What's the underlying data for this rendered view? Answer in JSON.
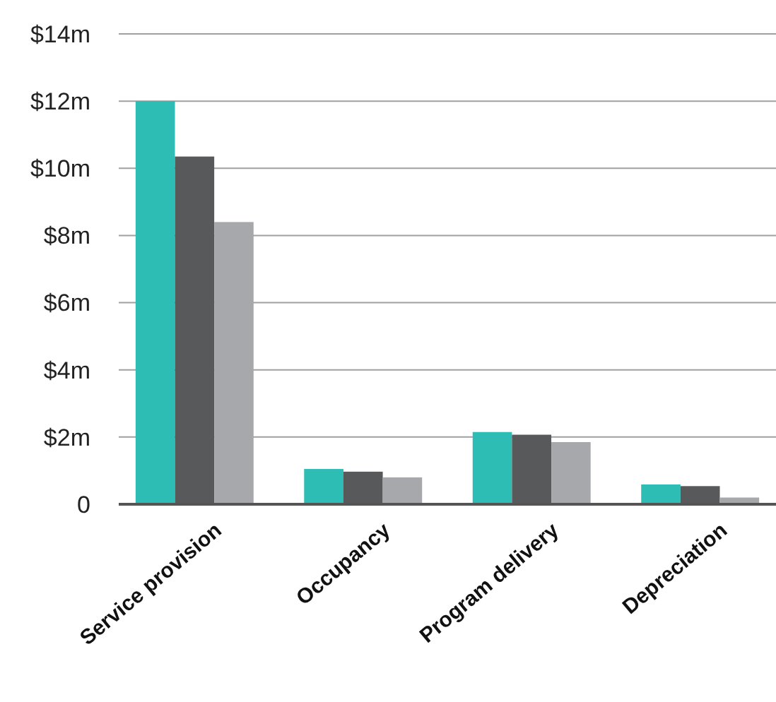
{
  "chart_data": {
    "type": "bar",
    "categories": [
      "Service provision",
      "Occupancy",
      "Program delivery",
      "Depreciation"
    ],
    "series": [
      {
        "color": "#2ebdb5",
        "values": [
          12,
          1.05,
          2.15,
          0.59
        ]
      },
      {
        "color": "#58595b",
        "values": [
          10.35,
          0.97,
          2.07,
          0.54
        ]
      },
      {
        "color": "#a7a8ab",
        "values": [
          8.4,
          0.8,
          1.85,
          0.2
        ]
      }
    ],
    "ylim": [
      0,
      14
    ],
    "yticks": [
      {
        "value": 0,
        "label": "0"
      },
      {
        "value": 2,
        "label": "$2m"
      },
      {
        "value": 4,
        "label": "$4m"
      },
      {
        "value": 6,
        "label": "$6m"
      },
      {
        "value": 8,
        "label": "$8m"
      },
      {
        "value": 10,
        "label": "$10m"
      },
      {
        "value": 12,
        "label": "$12m"
      },
      {
        "value": 14,
        "label": "$14m"
      }
    ],
    "grid": "y"
  }
}
